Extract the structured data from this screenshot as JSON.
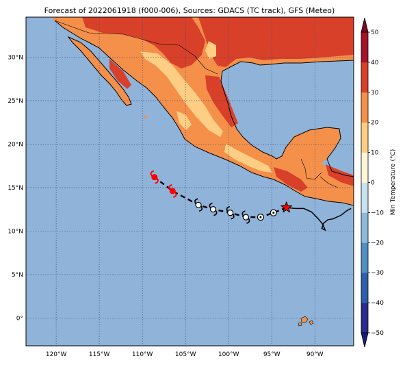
{
  "title": "Forecast of 2022061918 (f000-006), Sources: GDACS (TC track), GFS (Meteo)",
  "map": {
    "lon_range": [
      -123.5,
      -85.5
    ],
    "lat_range": [
      -3.2,
      34.6
    ],
    "lon_ticks": [
      {
        "value": -120,
        "label": "120°W"
      },
      {
        "value": -115,
        "label": "115°W"
      },
      {
        "value": -110,
        "label": "110°W"
      },
      {
        "value": -105,
        "label": "105°W"
      },
      {
        "value": -100,
        "label": "100°W"
      },
      {
        "value": -95,
        "label": "95°W"
      },
      {
        "value": -90,
        "label": "90°W"
      }
    ],
    "lat_ticks": [
      {
        "value": 30,
        "label": "30°N"
      },
      {
        "value": 25,
        "label": "25°N"
      },
      {
        "value": 20,
        "label": "20°N"
      },
      {
        "value": 15,
        "label": "15°N"
      },
      {
        "value": 10,
        "label": "10°N"
      },
      {
        "value": 5,
        "label": "5°N"
      },
      {
        "value": 0,
        "label": "0°"
      }
    ],
    "ocean_color": "#8fb3d9",
    "grid": "dotted"
  },
  "colorbar": {
    "label": "Min Temperature (°C)",
    "min": -50,
    "max": 50,
    "ticks": [
      "50",
      "40",
      "30",
      "20",
      "10",
      "0",
      "−10",
      "−20",
      "−30",
      "−40",
      "−50"
    ],
    "colors_bottom_to_top": [
      "#2c2c8f",
      "#2f5fa8",
      "#4f8fc4",
      "#8dbad9",
      "#c7e2ee",
      "#fff6d6",
      "#fdce83",
      "#f5904a",
      "#d8402a",
      "#a3132a"
    ]
  },
  "track": {
    "past_track": [
      [
        -85.8,
        12.6
      ],
      [
        -86.2,
        12.4
      ],
      [
        -87.0,
        11.8
      ],
      [
        -87.9,
        11.4
      ],
      [
        -88.5,
        11.3
      ],
      [
        -89.0,
        10.9
      ],
      [
        -89.2,
        10.3
      ],
      [
        -88.8,
        10.1
      ],
      [
        -89.1,
        10.8
      ],
      [
        -89.7,
        11.5
      ],
      [
        -90.4,
        12.2
      ],
      [
        -91.3,
        12.6
      ],
      [
        -92.3,
        12.6
      ],
      [
        -93.3,
        12.7
      ]
    ],
    "current_position": [
      -93.3,
      12.7
    ],
    "forecast_track": [
      [
        -93.3,
        12.7
      ],
      [
        -94.8,
        12.1
      ],
      [
        -96.3,
        11.6
      ],
      [
        -98.0,
        11.6
      ],
      [
        -99.8,
        12.1
      ],
      [
        -101.8,
        12.5
      ],
      [
        -103.5,
        13.0
      ],
      [
        -105.0,
        13.8
      ],
      [
        -106.5,
        14.6
      ],
      [
        -108.6,
        16.2
      ]
    ],
    "forecast_points": [
      {
        "lon": -94.8,
        "lat": 12.1,
        "category": "depression"
      },
      {
        "lon": -96.3,
        "lat": 11.6,
        "category": "depression"
      },
      {
        "lon": -98.0,
        "lat": 11.6,
        "category": "storm"
      },
      {
        "lon": -99.8,
        "lat": 12.1,
        "category": "storm"
      },
      {
        "lon": -101.8,
        "lat": 12.5,
        "category": "storm"
      },
      {
        "lon": -103.5,
        "lat": 13.0,
        "category": "storm"
      },
      {
        "lon": -106.5,
        "lat": 14.6,
        "category": "hurricane"
      },
      {
        "lon": -108.6,
        "lat": 16.2,
        "category": "hurricane"
      }
    ],
    "colors": {
      "storm": "#ffffff",
      "hurricane": "#ff0000",
      "marker": "#ff0000",
      "line": "#000000"
    }
  }
}
